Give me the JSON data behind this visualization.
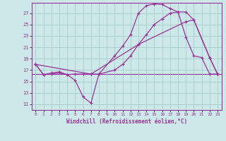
{
  "background_color": "#cce8e8",
  "grid_color": "#aacccc",
  "line_color": "#993399",
  "x_label": "Windchill (Refroidissement éolien,°C)",
  "y_ticks": [
    11,
    13,
    15,
    17,
    19,
    21,
    23,
    25,
    27
  ],
  "x_ticks": [
    0,
    1,
    2,
    3,
    4,
    5,
    6,
    7,
    8,
    9,
    10,
    11,
    12,
    13,
    14,
    15,
    16,
    17,
    18,
    19,
    20,
    21,
    22,
    23
  ],
  "xlim": [
    -0.5,
    23.5
  ],
  "ylim": [
    10.0,
    28.8
  ],
  "line1_x": [
    0,
    1,
    2,
    3,
    4,
    5,
    6,
    7,
    8,
    10,
    11,
    12,
    13,
    14,
    15,
    16,
    17,
    18,
    19,
    20,
    21,
    22,
    23
  ],
  "line1_y": [
    18.0,
    16.2,
    16.5,
    16.7,
    16.2,
    15.2,
    12.3,
    11.2,
    16.3,
    19.5,
    21.2,
    23.2,
    27.0,
    28.3,
    28.6,
    28.5,
    27.8,
    27.2,
    22.8,
    19.5,
    19.2,
    16.3,
    16.3
  ],
  "line2_x": [
    0,
    1,
    2,
    3,
    4,
    5,
    6,
    7,
    8,
    10,
    11,
    12,
    13,
    14,
    15,
    16,
    17,
    18,
    19,
    20,
    22,
    23
  ],
  "line2_y": [
    18.0,
    16.2,
    16.3,
    16.5,
    16.2,
    16.3,
    16.3,
    16.3,
    16.3,
    17.0,
    18.0,
    19.5,
    21.5,
    23.2,
    25.0,
    26.0,
    27.0,
    27.2,
    27.2,
    25.8,
    19.2,
    16.3
  ],
  "line3_x": [
    0,
    7,
    13,
    19,
    20,
    22,
    23
  ],
  "line3_y": [
    18.0,
    16.3,
    21.5,
    25.5,
    25.8,
    19.2,
    16.3
  ],
  "hline_y": 16.3
}
